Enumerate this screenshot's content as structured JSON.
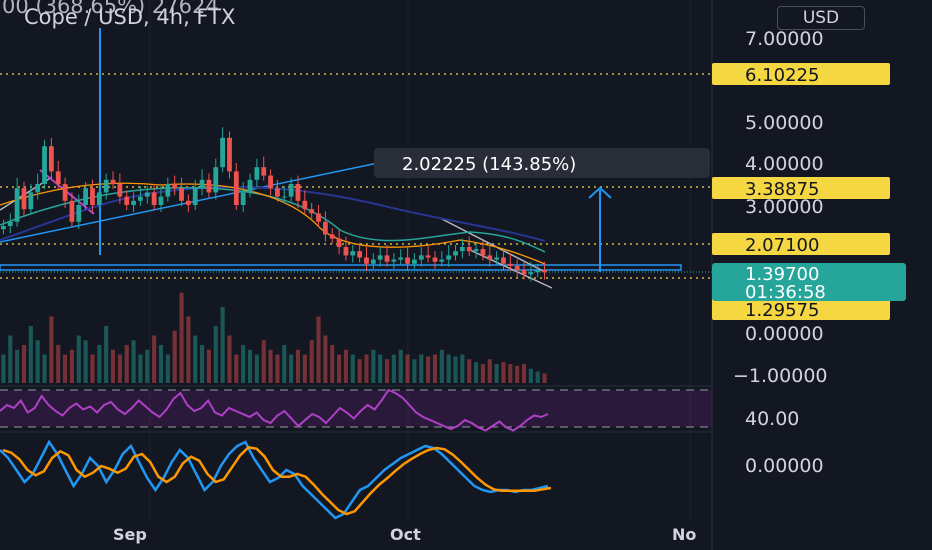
{
  "header": {
    "symbol_line": "Cope / USD, 4h, FTX",
    "change_line": "00 (368.65%) 27624"
  },
  "currency_button": "USD",
  "colors": {
    "background": "#131722",
    "candle_up": "#26a69a",
    "candle_down": "#ef5350",
    "level_line": "#f5d742",
    "measure": "#2962ff",
    "measure_light": "#2196f3",
    "rsi": "#9c27b0",
    "macd": "#2196f3",
    "signal": "#ff9800",
    "price_badge": "#26a69a"
  },
  "measure_label": "2.02225 (143.85%)",
  "price_badges": {
    "current_price": "1.39700",
    "countdown": "01:36:58"
  },
  "chart_data": {
    "type": "candlestick",
    "x_ticks": [
      "Sep",
      "Oct",
      "No"
    ],
    "price_axis_ticks": [
      "7.00000",
      "5.00000",
      "4.00000",
      "3.00000",
      "0.00000",
      "−1.00000"
    ],
    "rsi_axis_ticks": [
      "40.00"
    ],
    "macd_axis_ticks": [
      "0.00000"
    ],
    "levels": [
      "6.10225",
      "3.38875",
      "2.07100",
      "1.29575"
    ],
    "close_profile": [
      2.5,
      2.6,
      3.4,
      2.9,
      3.3,
      3.5,
      4.4,
      3.8,
      3.5,
      3.1,
      2.6,
      3.0,
      3.4,
      3.0,
      3.3,
      3.6,
      3.5,
      3.2,
      3.0,
      3.1,
      3.2,
      3.3,
      3.0,
      3.2,
      3.5,
      3.4,
      3.1,
      3.0,
      3.4,
      3.6,
      3.3,
      3.9,
      4.6,
      3.8,
      3.0,
      3.3,
      3.6,
      3.9,
      3.7,
      3.4,
      3.2,
      3.2,
      3.5,
      3.1,
      2.9,
      2.8,
      2.6,
      2.3,
      2.2,
      2.0,
      1.8,
      1.9,
      1.75,
      1.6,
      1.7,
      1.8,
      1.65,
      1.7,
      1.75,
      1.6,
      1.7,
      1.8,
      1.75,
      1.65,
      1.7,
      1.8,
      1.9,
      2.0,
      1.9,
      1.95,
      1.8,
      1.7,
      1.75,
      1.6,
      1.55,
      1.45,
      1.35,
      1.4,
      1.45,
      1.397
    ],
    "volume_profile": [
      0.3,
      0.5,
      0.35,
      0.4,
      0.6,
      0.45,
      0.3,
      0.7,
      0.4,
      0.3,
      0.35,
      0.5,
      0.45,
      0.3,
      0.4,
      0.6,
      0.35,
      0.3,
      0.4,
      0.45,
      0.3,
      0.35,
      0.5,
      0.4,
      0.3,
      0.55,
      0.95,
      0.7,
      0.5,
      0.4,
      0.35,
      0.6,
      0.8,
      0.5,
      0.3,
      0.4,
      0.35,
      0.3,
      0.45,
      0.35,
      0.3,
      0.4,
      0.3,
      0.35,
      0.3,
      0.45,
      0.7,
      0.5,
      0.4,
      0.3,
      0.35,
      0.3,
      0.25,
      0.3,
      0.35,
      0.3,
      0.25,
      0.3,
      0.35,
      0.3,
      0.25,
      0.3,
      0.28,
      0.3,
      0.35,
      0.3,
      0.28,
      0.3,
      0.25,
      0.22,
      0.2,
      0.25,
      0.2,
      0.22,
      0.2,
      0.18,
      0.2,
      0.15,
      0.12,
      0.1
    ],
    "rsi_profile": [
      48,
      52,
      50,
      55,
      47,
      50,
      58,
      52,
      48,
      45,
      50,
      53,
      49,
      51,
      47,
      52,
      54,
      49,
      46,
      50,
      55,
      51,
      47,
      44,
      49,
      56,
      60,
      52,
      48,
      50,
      55,
      47,
      45,
      50,
      48,
      46,
      44,
      47,
      42,
      40,
      45,
      48,
      43,
      38,
      42,
      46,
      44,
      40,
      45,
      50,
      47,
      43,
      48,
      52,
      49,
      55,
      62,
      60,
      57,
      52,
      47,
      44,
      42,
      40,
      38,
      36,
      38,
      42,
      40,
      37,
      35,
      38,
      41,
      37,
      35,
      38,
      42,
      45,
      44,
      46
    ],
    "macd_profile": [
      0.7,
      0.5,
      0.2,
      -0.1,
      0.1,
      0.5,
      0.9,
      0.6,
      0.2,
      -0.2,
      0.1,
      0.5,
      0.3,
      -0.1,
      0.2,
      0.6,
      0.8,
      0.4,
      0.0,
      -0.3,
      0.0,
      0.4,
      0.7,
      0.5,
      0.1,
      -0.3,
      -0.1,
      0.3,
      0.6,
      0.8,
      0.9,
      0.5,
      0.2,
      -0.1,
      0.0,
      0.2,
      0.1,
      -0.2,
      -0.4,
      -0.6,
      -0.8,
      -1.0,
      -0.9,
      -0.6,
      -0.3,
      -0.2,
      0.0,
      0.2,
      0.35,
      0.5,
      0.6,
      0.7,
      0.8,
      0.75,
      0.6,
      0.4,
      0.2,
      0.0,
      -0.2,
      -0.3,
      -0.35,
      -0.3,
      -0.3,
      -0.35,
      -0.3,
      -0.3,
      -0.25,
      -0.2
    ]
  }
}
